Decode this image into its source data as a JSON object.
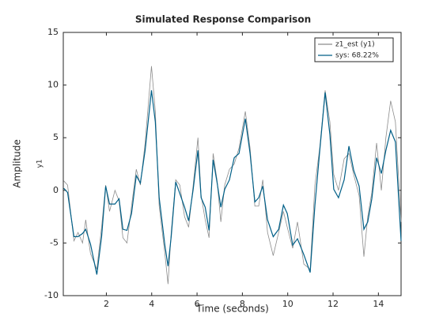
{
  "chart_data": {
    "type": "line",
    "title": "Simulated Response Comparison",
    "xlabel": "Time (seconds)",
    "ylabel": "Amplitude",
    "channel_label": "y1",
    "xlim": [
      0.1,
      15
    ],
    "ylim": [
      -10,
      15
    ],
    "xticks": [
      2,
      4,
      6,
      8,
      10,
      12,
      14
    ],
    "yticks": [
      -10,
      -5,
      0,
      5,
      10,
      15
    ],
    "legend": "upper right",
    "x": [
      0.12,
      0.29,
      0.57,
      0.75,
      0.95,
      1.09,
      1.3,
      1.58,
      1.79,
      1.97,
      2.14,
      2.38,
      2.56,
      2.73,
      2.91,
      3.11,
      3.32,
      3.5,
      3.71,
      3.99,
      4.16,
      4.33,
      4.58,
      4.72,
      4.86,
      5.06,
      5.24,
      5.45,
      5.63,
      5.83,
      6.04,
      6.18,
      6.36,
      6.53,
      6.71,
      6.88,
      7.05,
      7.22,
      7.43,
      7.64,
      7.85,
      8.13,
      8.34,
      8.55,
      8.72,
      8.9,
      9.11,
      9.36,
      9.6,
      9.81,
      9.98,
      10.22,
      10.43,
      10.71,
      10.99,
      11.2,
      11.41,
      11.65,
      11.86,
      12.03,
      12.24,
      12.49,
      12.7,
      12.91,
      13.15,
      13.36,
      13.53,
      13.71,
      13.92,
      14.13,
      14.33,
      14.54,
      14.75,
      15.0
    ],
    "series": [
      {
        "name": "z1_est (y1)",
        "color": "#8c8c8c",
        "values": [
          0.9,
          0.5,
          -4.8,
          -4.0,
          -5.0,
          -2.8,
          -6.0,
          -7.5,
          -3.5,
          0.5,
          -2.0,
          0.0,
          -1.0,
          -4.5,
          -5.0,
          -1.5,
          2.0,
          0.5,
          4.5,
          11.8,
          7.5,
          -1.5,
          -6.0,
          -8.9,
          -4.0,
          1.0,
          0.5,
          -2.5,
          -3.5,
          0.5,
          5.0,
          -0.5,
          -2.8,
          -4.5,
          3.5,
          1.0,
          -3.0,
          0.5,
          2.0,
          2.5,
          4.0,
          7.5,
          4.0,
          -1.5,
          -1.5,
          1.0,
          -4.0,
          -6.2,
          -4.0,
          -2.0,
          -3.5,
          -5.5,
          -3.0,
          -7.0,
          -7.5,
          0.5,
          4.0,
          9.5,
          6.5,
          1.5,
          0,
          3.0,
          3.5,
          1.5,
          -0.5,
          -6.3,
          -2.5,
          -0.2,
          4.5,
          0.0,
          5.0,
          8.5,
          6.5,
          -3.0
        ]
      },
      {
        "name": "sys: 68.22%",
        "color": "#005f87",
        "values": [
          0.2,
          -0.2,
          -4.4,
          -4.4,
          -4.1,
          -3.7,
          -5.1,
          -8.0,
          -4.4,
          0.4,
          -1.3,
          -1.3,
          -0.8,
          -3.7,
          -3.8,
          -2.2,
          1.4,
          0.7,
          3.8,
          9.5,
          6.5,
          -0.7,
          -5.2,
          -7.2,
          -4.4,
          0.8,
          -0.3,
          -1.6,
          -2.9,
          0.1,
          3.8,
          -0.7,
          -1.6,
          -3.8,
          2.9,
          0.8,
          -1.6,
          0.1,
          1.0,
          3.1,
          3.5,
          6.8,
          3.5,
          -1.1,
          -0.7,
          0.4,
          -2.8,
          -4.4,
          -3.7,
          -1.4,
          -2.2,
          -5.2,
          -4.6,
          -6.1,
          -7.8,
          -1.4,
          3.7,
          9.3,
          5.3,
          0.1,
          -0.7,
          1.0,
          4.2,
          1.9,
          0.4,
          -3.7,
          -3.0,
          -0.8,
          3.1,
          1.6,
          3.8,
          5.7,
          4.6,
          -4.8
        ]
      }
    ]
  }
}
